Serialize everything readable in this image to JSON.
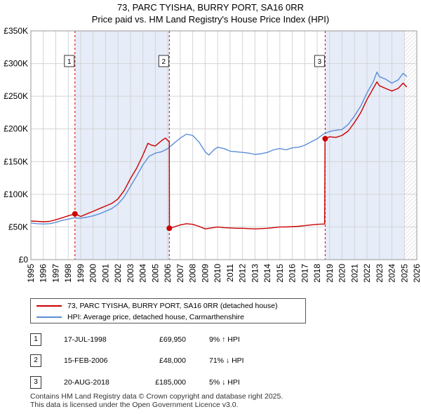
{
  "header": {
    "title_line1": "73, PARC TYISHA, BURRY PORT, SA16 0RR",
    "title_line2": "Price paid vs. HM Land Registry's House Price Index (HPI)"
  },
  "chart_data": {
    "type": "line",
    "title": "73, PARC TYISHA, BURRY PORT, SA16 0RR — Price paid vs. HM Land Registry's House Price Index (HPI)",
    "xlabel": "",
    "ylabel": "",
    "xlim": [
      1995,
      2026
    ],
    "ylim": [
      0,
      350000
    ],
    "y_ticks": [
      {
        "value": 0,
        "label": "£0"
      },
      {
        "value": 50000,
        "label": "£50K"
      },
      {
        "value": 100000,
        "label": "£100K"
      },
      {
        "value": 150000,
        "label": "£150K"
      },
      {
        "value": 200000,
        "label": "£200K"
      },
      {
        "value": 250000,
        "label": "£250K"
      },
      {
        "value": 300000,
        "label": "£300K"
      },
      {
        "value": 350000,
        "label": "£350K"
      }
    ],
    "x_ticks": [
      "1995",
      "1996",
      "1997",
      "1998",
      "1999",
      "2000",
      "2001",
      "2002",
      "2003",
      "2004",
      "2005",
      "2006",
      "2007",
      "2008",
      "2009",
      "2010",
      "2011",
      "2012",
      "2013",
      "2014",
      "2015",
      "2016",
      "2017",
      "2018",
      "2019",
      "2020",
      "2021",
      "2022",
      "2023",
      "2024",
      "2025",
      "2026"
    ],
    "grid": true,
    "forecast_hatch_start": 2025.0,
    "series": [
      {
        "name": "73, PARC TYISHA, BURRY PORT, SA16 0RR (detached house)",
        "color": "#cc0000",
        "points": [
          [
            1995.0,
            59000
          ],
          [
            1995.5,
            58500
          ],
          [
            1996.0,
            58000
          ],
          [
            1996.5,
            58500
          ],
          [
            1997.0,
            61000
          ],
          [
            1997.5,
            64000
          ],
          [
            1998.0,
            67000
          ],
          [
            1998.54,
            69950
          ],
          [
            1999.0,
            66000
          ],
          [
            1999.5,
            70000
          ],
          [
            2000.0,
            74000
          ],
          [
            2000.5,
            78000
          ],
          [
            2001.0,
            82000
          ],
          [
            2001.5,
            86000
          ],
          [
            2002.0,
            93000
          ],
          [
            2002.5,
            106000
          ],
          [
            2003.0,
            124000
          ],
          [
            2003.5,
            140000
          ],
          [
            2004.0,
            160000
          ],
          [
            2004.4,
            178000
          ],
          [
            2004.7,
            175000
          ],
          [
            2005.0,
            174000
          ],
          [
            2005.5,
            182000
          ],
          [
            2005.8,
            186000
          ],
          [
            2006.12,
            180000
          ],
          [
            2006.13,
            48000
          ],
          [
            2006.5,
            50000
          ],
          [
            2007.0,
            53000
          ],
          [
            2007.5,
            55000
          ],
          [
            2008.0,
            54000
          ],
          [
            2008.5,
            51000
          ],
          [
            2009.0,
            47000
          ],
          [
            2009.5,
            48500
          ],
          [
            2010.0,
            50000
          ],
          [
            2010.5,
            49000
          ],
          [
            2011.0,
            48500
          ],
          [
            2011.5,
            48000
          ],
          [
            2012.0,
            48000
          ],
          [
            2012.5,
            47500
          ],
          [
            2013.0,
            47000
          ],
          [
            2013.5,
            47500
          ],
          [
            2014.0,
            48000
          ],
          [
            2014.5,
            49000
          ],
          [
            2015.0,
            50000
          ],
          [
            2015.5,
            50000
          ],
          [
            2016.0,
            50500
          ],
          [
            2016.5,
            51000
          ],
          [
            2017.0,
            52000
          ],
          [
            2017.5,
            53000
          ],
          [
            2018.0,
            54000
          ],
          [
            2018.6,
            54500
          ],
          [
            2018.63,
            185000
          ],
          [
            2019.0,
            188000
          ],
          [
            2019.5,
            187000
          ],
          [
            2020.0,
            190000
          ],
          [
            2020.5,
            197000
          ],
          [
            2021.0,
            210000
          ],
          [
            2021.5,
            225000
          ],
          [
            2022.0,
            245000
          ],
          [
            2022.5,
            262000
          ],
          [
            2022.8,
            272000
          ],
          [
            2023.0,
            266000
          ],
          [
            2023.5,
            262000
          ],
          [
            2024.0,
            258000
          ],
          [
            2024.5,
            262000
          ],
          [
            2024.9,
            270000
          ],
          [
            2025.2,
            264000
          ]
        ]
      },
      {
        "name": "HPI: Average price, detached house, Carmarthenshire",
        "color": "#5b8dd8",
        "points": [
          [
            1995.0,
            56000
          ],
          [
            1995.5,
            55000
          ],
          [
            1996.0,
            54500
          ],
          [
            1996.5,
            55000
          ],
          [
            1997.0,
            57000
          ],
          [
            1997.5,
            60000
          ],
          [
            1998.0,
            62000
          ],
          [
            1998.5,
            64000
          ],
          [
            1999.0,
            63500
          ],
          [
            1999.5,
            65000
          ],
          [
            2000.0,
            67000
          ],
          [
            2000.5,
            70000
          ],
          [
            2001.0,
            74000
          ],
          [
            2001.5,
            78000
          ],
          [
            2002.0,
            85000
          ],
          [
            2002.5,
            96000
          ],
          [
            2003.0,
            112000
          ],
          [
            2003.5,
            128000
          ],
          [
            2004.0,
            145000
          ],
          [
            2004.5,
            158000
          ],
          [
            2005.0,
            163000
          ],
          [
            2005.5,
            165000
          ],
          [
            2006.0,
            170000
          ],
          [
            2006.5,
            178000
          ],
          [
            2007.0,
            186000
          ],
          [
            2007.5,
            192000
          ],
          [
            2008.0,
            190000
          ],
          [
            2008.5,
            180000
          ],
          [
            2009.0,
            165000
          ],
          [
            2009.3,
            160000
          ],
          [
            2009.7,
            168000
          ],
          [
            2010.0,
            172000
          ],
          [
            2010.5,
            170000
          ],
          [
            2011.0,
            166000
          ],
          [
            2011.5,
            165000
          ],
          [
            2012.0,
            164000
          ],
          [
            2012.5,
            163000
          ],
          [
            2013.0,
            161000
          ],
          [
            2013.5,
            162000
          ],
          [
            2014.0,
            164000
          ],
          [
            2014.5,
            168000
          ],
          [
            2015.0,
            170000
          ],
          [
            2015.5,
            168000
          ],
          [
            2016.0,
            171000
          ],
          [
            2016.5,
            172000
          ],
          [
            2017.0,
            175000
          ],
          [
            2017.5,
            180000
          ],
          [
            2018.0,
            185000
          ],
          [
            2018.5,
            192000
          ],
          [
            2019.0,
            196000
          ],
          [
            2019.5,
            198000
          ],
          [
            2020.0,
            199000
          ],
          [
            2020.5,
            207000
          ],
          [
            2021.0,
            220000
          ],
          [
            2021.5,
            235000
          ],
          [
            2022.0,
            255000
          ],
          [
            2022.5,
            272000
          ],
          [
            2022.8,
            287000
          ],
          [
            2023.0,
            280000
          ],
          [
            2023.5,
            276000
          ],
          [
            2024.0,
            270000
          ],
          [
            2024.5,
            275000
          ],
          [
            2024.9,
            285000
          ],
          [
            2025.2,
            280000
          ]
        ]
      }
    ],
    "sales": [
      {
        "id": "1",
        "x": 1998.54,
        "price": 69950,
        "date": "17-JUL-1998",
        "price_label": "£69,950",
        "hpi_label": "9% ↑ HPI"
      },
      {
        "id": "2",
        "x": 2006.12,
        "price": 48000,
        "date": "15-FEB-2006",
        "price_label": "£48,000",
        "hpi_label": "71% ↓ HPI"
      },
      {
        "id": "3",
        "x": 2018.64,
        "price": 185000,
        "date": "20-AUG-2018",
        "price_label": "£185,000",
        "hpi_label": "5% ↓ HPI"
      }
    ]
  },
  "legend": {
    "property_label": "73, PARC TYISHA, BURRY PORT, SA16 0RR (detached house)",
    "hpi_label": "HPI: Average price, detached house, Carmarthenshire"
  },
  "sales_table": [
    {
      "num": "1",
      "date": "17-JUL-1998",
      "price": "£69,950",
      "hpi": "9% ↑ HPI"
    },
    {
      "num": "2",
      "date": "15-FEB-2006",
      "price": "£48,000",
      "hpi": "71% ↓ HPI"
    },
    {
      "num": "3",
      "date": "20-AUG-2018",
      "price": "£185,000",
      "hpi": "5% ↓ HPI"
    }
  ],
  "footer": {
    "line1": "Contains HM Land Registry data © Crown copyright and database right 2025.",
    "line2": "This data is licensed under the Open Government Licence v3.0."
  },
  "colors": {
    "property": "#cc0000",
    "hpi": "#5b8dd8",
    "shade": "#e6ecf8",
    "grid": "#d4d4d4",
    "marker_line": "#cc0000"
  }
}
